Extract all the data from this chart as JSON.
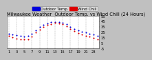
{
  "title": "Milwaukee Weather  Outdoor Temp. vs Wind Chill (24 Hours)",
  "legend_labels": [
    "Outdoor Temp.",
    "Wind Chill"
  ],
  "hours": [
    1,
    2,
    3,
    4,
    5,
    6,
    7,
    8,
    9,
    10,
    11,
    12,
    13,
    14,
    15,
    16,
    17,
    18,
    19,
    20,
    21,
    22,
    23,
    24
  ],
  "temp": [
    22,
    20,
    19,
    18,
    17,
    18,
    22,
    28,
    34,
    38,
    41,
    43,
    44,
    43,
    42,
    39,
    35,
    31,
    28,
    26,
    24,
    22,
    20,
    18
  ],
  "wind_chill": [
    18,
    15,
    13,
    12,
    11,
    12,
    17,
    24,
    30,
    35,
    38,
    40,
    42,
    41,
    39,
    36,
    31,
    27,
    23,
    20,
    18,
    16,
    14,
    12
  ],
  "fig_bg_color": "#c0c0c0",
  "plot_bg": "#ffffff",
  "border_color": "#666666",
  "grid_color": "#aaaaaa",
  "tick_color": "#000000",
  "temp_color": "#0000dd",
  "wind_chill_color": "#dd0000",
  "ylim": [
    -5,
    55
  ],
  "xlim": [
    0.5,
    24.5
  ],
  "yticks": [
    -5,
    5,
    15,
    25,
    35,
    45,
    55
  ],
  "xtick_positions": [
    1,
    3,
    5,
    7,
    9,
    11,
    13,
    15,
    17,
    19,
    21,
    23
  ],
  "xtick_labels": [
    "1",
    "3",
    "5",
    "7",
    "9",
    "11",
    "13",
    "15",
    "17",
    "19",
    "21",
    "23"
  ],
  "marker_size": 1.5,
  "title_fontsize": 4.8,
  "tick_fontsize": 3.8,
  "legend_fontsize": 4.0
}
